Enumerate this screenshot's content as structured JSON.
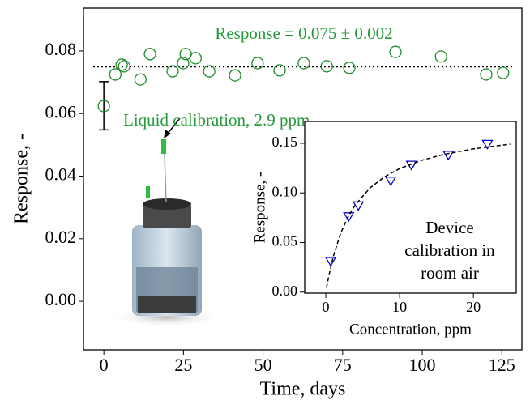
{
  "chart_data": [
    {
      "type": "scatter",
      "xlabel": "Time, days",
      "ylabel": "Response, -",
      "xlim": [
        -6.4,
        131.3
      ],
      "ylim": [
        -0.0155,
        0.0937
      ],
      "xticks": [
        0,
        25,
        50,
        75,
        100,
        125
      ],
      "yticks": [
        {
          "value": 0,
          "label": "0.00"
        },
        0.02,
        0.04,
        0.06,
        0.08
      ],
      "grid": false,
      "annotations": [
        "Response = 0.075 ± 0.002",
        "Liquid calibration, 2.9 ppm"
      ],
      "annotation_color": "#239b3a",
      "reference_y": 0.075,
      "series": [
        {
          "kind": "scatter",
          "marker": "circle",
          "color": "#1e8c2c",
          "x": [
            0,
            3.6,
            5.6,
            6.4,
            11.5,
            14.5,
            21.6,
            24.9,
            25.7,
            28.8,
            33.1,
            41.2,
            48.3,
            55.2,
            62.8,
            70,
            77.1,
            91.6,
            105.9,
            120.1,
            125.4
          ],
          "values": [
            0.0624,
            0.0725,
            0.0756,
            0.0751,
            0.0709,
            0.079,
            0.0735,
            0.0761,
            0.079,
            0.0777,
            0.0735,
            0.0722,
            0.0761,
            0.0738,
            0.0761,
            0.0751,
            0.0746,
            0.0797,
            0.0782,
            0.0725,
            0.073
          ]
        }
      ],
      "error_bar": {
        "x": 0,
        "value": 0.0625,
        "error": 0.0077
      }
    },
    {
      "type": "scatter",
      "xlabel": "Concentration, ppm",
      "ylabel": "Response, -",
      "xlim": [
        -2.86,
        25.8
      ],
      "ylim": [
        -0.001,
        0.172
      ],
      "xticks": [
        0,
        10,
        20
      ],
      "yticks": [
        {
          "value": 0,
          "label": "0.00"
        },
        0.05,
        {
          "value": 0.1,
          "label": "0.10"
        },
        0.15
      ],
      "grid": false,
      "annotation_lines": [
        "Device",
        "calibration in",
        "room air"
      ],
      "series": [
        {
          "kind": "scatter",
          "marker": "triangle-down",
          "color": "#0000cc",
          "x": [
            0.66,
            3.1,
            4.4,
            8.8,
            11.6,
            16.6,
            21.9
          ],
          "values": [
            0.032,
            0.077,
            0.088,
            0.113,
            0.129,
            0.139,
            0.15
          ]
        },
        {
          "kind": "line",
          "dash": true,
          "color": "#000000",
          "x": [
            0.1,
            0.3,
            1,
            2,
            3,
            4,
            6,
            8,
            10,
            13,
            16,
            20,
            25
          ],
          "values": [
            0.0044,
            0.0125,
            0.0357,
            0.0591,
            0.0757,
            0.088,
            0.1051,
            0.1164,
            0.1245,
            0.1329,
            0.1388,
            0.1444,
            0.1492
          ]
        }
      ]
    }
  ]
}
